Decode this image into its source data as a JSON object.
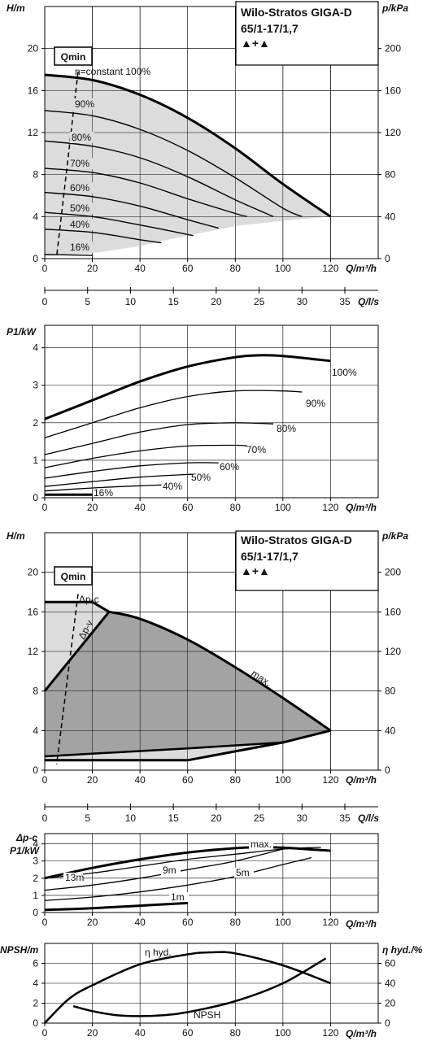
{
  "colors": {
    "fill_light": "#dcdcdc",
    "fill_dark": "#a3a3a3",
    "line": "#000000"
  },
  "charts": {
    "h1": {
      "title_lines": [
        "Wilo-Stratos GIGA-D",
        "65/1-17/1,7"
      ],
      "title_symbols": "▲+▲",
      "ylabel": "H/m",
      "ylabel_right": "p/kPa",
      "xlabel": "Q/m³/h",
      "qmin": "Qmin",
      "curve_labels": [
        "n=constant 100%",
        "90%",
        "80%",
        "70%",
        "60%",
        "50%",
        "40%",
        "16%"
      ],
      "xticks": [
        "0",
        "20",
        "40",
        "60",
        "80",
        "100",
        "120"
      ],
      "yticks": [
        "0",
        "4",
        "8",
        "12",
        "16",
        "20"
      ],
      "yticks_right": [
        "0",
        "40",
        "80",
        "120",
        "160",
        "200"
      ]
    },
    "axis_ls1": {
      "label": "Q/l/s",
      "ticks": [
        "0",
        "5",
        "10",
        "15",
        "20",
        "25",
        "30",
        "35"
      ]
    },
    "p1": {
      "ylabel": "P1/kW",
      "xlabel": "Q/m³/h",
      "curve_labels": [
        "100%",
        "90%",
        "80%",
        "70%",
        "60%",
        "50%",
        "40%",
        "16%"
      ],
      "xticks": [
        "0",
        "20",
        "40",
        "60",
        "80",
        "100",
        "120"
      ],
      "yticks": [
        "0",
        "1",
        "2",
        "3",
        "4"
      ]
    },
    "h2": {
      "title_lines": [
        "Wilo-Stratos GIGA-D",
        "65/1-17/1,7"
      ],
      "title_symbols": "▲+▲",
      "ylabel": "H/m",
      "ylabel_right": "p/kPa",
      "xlabel": "Q/m³/h",
      "qmin": "Qmin",
      "curve_labels": [
        "Δp-c",
        "Δp-v",
        "max."
      ],
      "xticks": [
        "0",
        "20",
        "40",
        "60",
        "80",
        "100",
        "120"
      ],
      "yticks": [
        "0",
        "4",
        "8",
        "12",
        "16",
        "20"
      ],
      "yticks_right": [
        "0",
        "40",
        "80",
        "120",
        "160",
        "200"
      ]
    },
    "axis_ls2": {
      "label": "Q/l/s",
      "ticks": [
        "0",
        "5",
        "10",
        "15",
        "20",
        "25",
        "30",
        "35"
      ]
    },
    "p2": {
      "ylabel_top": "Δp-c",
      "ylabel": "P1/kW",
      "xlabel": "Q/m³/h",
      "curve_labels": [
        "max.",
        "13m",
        "9m",
        "5m",
        "1m"
      ],
      "xticks": [
        "0",
        "20",
        "40",
        "60",
        "80",
        "100",
        "120"
      ],
      "yticks": [
        "0",
        "1",
        "2",
        "3",
        "4"
      ]
    },
    "npsh": {
      "ylabel": "NPSH/m",
      "ylabel_right": "η hyd./%",
      "xlabel": "Q/m³/h",
      "curve_labels": [
        "η hyd.",
        "NPSH"
      ],
      "xticks": [
        "0",
        "20",
        "40",
        "60",
        "80",
        "100",
        "120"
      ],
      "yticks": [
        "0",
        "2",
        "4",
        "6"
      ],
      "yticks_right": [
        "0",
        "20",
        "40",
        "60"
      ]
    }
  },
  "chart_data": [
    {
      "type": "line",
      "title": "Wilo-Stratos GIGA-D 65/1-17/1,7",
      "xlabel": "Q/m³/h",
      "ylabel": "H/m",
      "ylabel_right": "p/kPa",
      "xlim": [
        0,
        140
      ],
      "ylim": [
        0,
        24
      ],
      "series": [
        {
          "name": "n=constant 100%",
          "x": [
            0,
            20,
            40,
            60,
            80,
            100,
            120
          ],
          "y": [
            17.5,
            17.0,
            15.6,
            13.4,
            10.5,
            7.1,
            4.0
          ]
        },
        {
          "name": "90%",
          "x": [
            0,
            20,
            40,
            60,
            80,
            100,
            108
          ],
          "y": [
            14.1,
            13.6,
            12.3,
            10.3,
            7.7,
            4.8,
            4.0
          ]
        },
        {
          "name": "80%",
          "x": [
            0,
            20,
            40,
            60,
            80,
            96
          ],
          "y": [
            11.2,
            10.7,
            9.6,
            7.8,
            5.6,
            4.0
          ]
        },
        {
          "name": "70%",
          "x": [
            0,
            20,
            40,
            60,
            80,
            85
          ],
          "y": [
            8.6,
            8.2,
            7.2,
            5.7,
            4.3,
            4.0
          ]
        },
        {
          "name": "60%",
          "x": [
            0,
            20,
            40,
            60,
            73
          ],
          "y": [
            6.3,
            5.9,
            5.0,
            3.7,
            2.9
          ]
        },
        {
          "name": "50%",
          "x": [
            0,
            20,
            40,
            60,
            62
          ],
          "y": [
            4.4,
            4.0,
            3.2,
            2.3,
            2.2
          ]
        },
        {
          "name": "40%",
          "x": [
            0,
            20,
            40,
            49
          ],
          "y": [
            2.8,
            2.5,
            1.8,
            1.5
          ]
        },
        {
          "name": "16%",
          "x": [
            0,
            20
          ],
          "y": [
            0.4,
            0.3
          ]
        }
      ]
    },
    {
      "type": "line",
      "xlabel": "Q/m³/h",
      "ylabel": "P1/kW",
      "xlim": [
        0,
        140
      ],
      "ylim": [
        0,
        4.6
      ],
      "series": [
        {
          "name": "100%",
          "x": [
            0,
            20,
            40,
            60,
            80,
            90,
            100,
            120
          ],
          "y": [
            2.1,
            2.6,
            3.1,
            3.5,
            3.75,
            3.8,
            3.78,
            3.65
          ]
        },
        {
          "name": "90%",
          "x": [
            0,
            20,
            40,
            60,
            80,
            100,
            108
          ],
          "y": [
            1.6,
            2.0,
            2.4,
            2.7,
            2.85,
            2.85,
            2.82
          ]
        },
        {
          "name": "80%",
          "x": [
            0,
            20,
            40,
            60,
            80,
            96
          ],
          "y": [
            1.15,
            1.45,
            1.75,
            1.95,
            2.0,
            1.97
          ]
        },
        {
          "name": "70%",
          "x": [
            0,
            20,
            40,
            60,
            80,
            85
          ],
          "y": [
            0.8,
            1.05,
            1.25,
            1.38,
            1.4,
            1.38
          ]
        },
        {
          "name": "60%",
          "x": [
            0,
            20,
            40,
            60,
            73
          ],
          "y": [
            0.52,
            0.7,
            0.85,
            0.93,
            0.93
          ]
        },
        {
          "name": "50%",
          "x": [
            0,
            20,
            40,
            60,
            62
          ],
          "y": [
            0.3,
            0.43,
            0.55,
            0.62,
            0.62
          ]
        },
        {
          "name": "40%",
          "x": [
            0,
            20,
            40,
            49
          ],
          "y": [
            0.18,
            0.26,
            0.32,
            0.34
          ]
        },
        {
          "name": "16%",
          "x": [
            0,
            20
          ],
          "y": [
            0.08,
            0.08
          ]
        }
      ]
    },
    {
      "type": "area",
      "title": "Wilo-Stratos GIGA-D 65/1-17/1,7",
      "xlabel": "Q/m³/h",
      "ylabel": "H/m",
      "ylabel_right": "p/kPa",
      "xlim": [
        0,
        140
      ],
      "ylim": [
        0,
        24
      ],
      "series": [
        {
          "name": "max.",
          "x": [
            0,
            20,
            27,
            40,
            60,
            80,
            100,
            120
          ],
          "y": [
            17.0,
            17.0,
            16.0,
            15.3,
            13.2,
            10.4,
            7.3,
            4.0
          ]
        },
        {
          "name": "Δp-c",
          "x": [
            0,
            10,
            20,
            27
          ],
          "y": [
            17.0,
            17.0,
            17.0,
            16.0
          ]
        },
        {
          "name": "Δp-v",
          "x": [
            0,
            10,
            20,
            27
          ],
          "y": [
            8.0,
            11.0,
            14.0,
            16.0
          ]
        }
      ]
    },
    {
      "type": "line",
      "xlabel": "Q/m³/h",
      "ylabel": "P1/kW",
      "xlim": [
        0,
        140
      ],
      "ylim": [
        0,
        4.6
      ],
      "series": [
        {
          "name": "max.",
          "x": [
            0,
            20,
            40,
            60,
            80,
            90,
            100,
            120
          ],
          "y": [
            2.0,
            2.6,
            3.1,
            3.5,
            3.75,
            3.8,
            3.78,
            3.6
          ]
        },
        {
          "name": "13m",
          "x": [
            0,
            20,
            40,
            60,
            80,
            100,
            116
          ],
          "y": [
            2.0,
            2.3,
            2.7,
            3.1,
            3.4,
            3.7,
            3.8
          ]
        },
        {
          "name": "9m",
          "x": [
            0,
            20,
            40,
            60,
            80,
            100
          ],
          "y": [
            1.3,
            1.6,
            2.0,
            2.5,
            3.0,
            3.7
          ]
        },
        {
          "name": "5m",
          "x": [
            0,
            20,
            40,
            60,
            80,
            100,
            112
          ],
          "y": [
            0.7,
            0.9,
            1.2,
            1.6,
            2.1,
            2.8,
            3.2
          ]
        },
        {
          "name": "1m",
          "x": [
            0,
            20,
            40,
            60
          ],
          "y": [
            0.15,
            0.25,
            0.4,
            0.55
          ]
        }
      ]
    },
    {
      "type": "line",
      "xlabel": "Q/m³/h",
      "ylabel": "NPSH/m",
      "ylabel_right": "η hyd./%",
      "xlim": [
        0,
        140
      ],
      "ylim": [
        0,
        8
      ],
      "series": [
        {
          "name": "η hyd.",
          "x": [
            0,
            10,
            20,
            40,
            60,
            70,
            80,
            100,
            120
          ],
          "y": [
            0,
            2.4,
            3.8,
            5.9,
            6.9,
            7.1,
            7.0,
            5.8,
            4.0
          ]
        },
        {
          "name": "NPSH",
          "x": [
            12,
            20,
            30,
            40,
            50,
            60,
            80,
            100,
            118
          ],
          "y": [
            1.7,
            1.2,
            0.8,
            0.7,
            0.8,
            1.1,
            2.2,
            4.0,
            6.5
          ]
        }
      ]
    }
  ]
}
